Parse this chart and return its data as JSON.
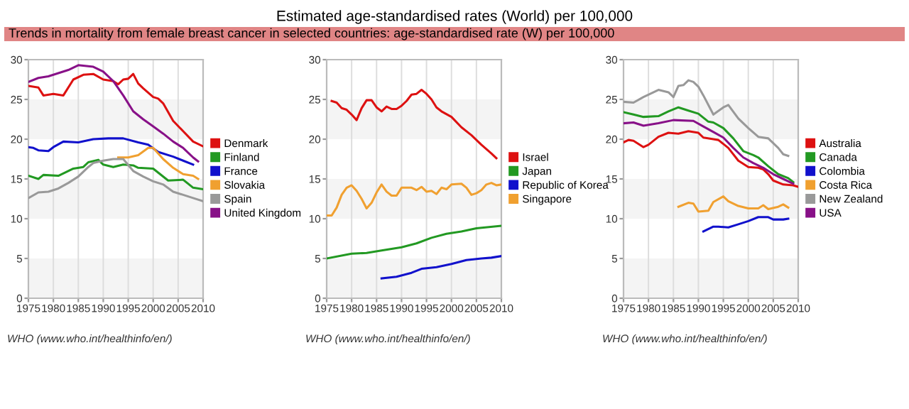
{
  "chart_data": [
    {
      "type": "line",
      "xlim": [
        1975,
        2010
      ],
      "xticks": [
        1975,
        1980,
        1985,
        1990,
        1995,
        2000,
        2005,
        2010
      ],
      "ylim": [
        0,
        30
      ],
      "yticks": [
        0,
        5,
        10,
        15,
        20,
        25,
        30
      ],
      "grid": "x",
      "legend": "right",
      "marker": "none",
      "line_style": "solid",
      "bands": [
        {
          "axis": "y",
          "from": 0,
          "to": 5,
          "color": "#f4f4f4"
        },
        {
          "axis": "y",
          "from": 10,
          "to": 15,
          "color": "#f4f4f4"
        },
        {
          "axis": "y",
          "from": 20,
          "to": 25,
          "color": "#f4f4f4"
        }
      ],
      "annotations": [
        "WHO (www.who.int/healthinfo/en/)"
      ],
      "series": [
        {
          "name": "Denmark",
          "color": "#dd1111",
          "x": [
            1975,
            1977,
            1978,
            1980,
            1982,
            1984,
            1986,
            1988,
            1990,
            1992,
            1993,
            1994,
            1995,
            1996,
            1997,
            1998,
            2000,
            2001,
            2002,
            2004,
            2006,
            2008,
            2010
          ],
          "values": [
            26.7,
            26.5,
            25.5,
            25.7,
            25.5,
            27.5,
            28.1,
            28.2,
            27.5,
            27.3,
            26.9,
            27.5,
            27.6,
            28.2,
            27.0,
            26.4,
            25.3,
            25.1,
            24.5,
            22.3,
            21.0,
            19.7,
            19.1
          ]
        },
        {
          "name": "Finland",
          "color": "#229922",
          "x": [
            1975,
            1977,
            1978,
            1981,
            1984,
            1986,
            1987,
            1989,
            1990,
            1992,
            1994,
            1996,
            1997,
            2000,
            2003,
            2006,
            2008,
            2010
          ],
          "values": [
            15.4,
            15.0,
            15.5,
            15.4,
            16.3,
            16.5,
            17.1,
            17.4,
            16.8,
            16.5,
            16.8,
            16.7,
            16.4,
            16.3,
            14.8,
            14.9,
            13.9,
            13.7
          ]
        },
        {
          "name": "France",
          "color": "#1111cc",
          "x": [
            1975,
            1976,
            1977,
            1979,
            1980,
            1982,
            1985,
            1988,
            1991,
            1994,
            1997,
            1999,
            2001,
            2004,
            2006,
            2008
          ],
          "values": [
            19.0,
            18.9,
            18.6,
            18.5,
            19.0,
            19.7,
            19.6,
            20.0,
            20.1,
            20.1,
            19.6,
            19.3,
            18.4,
            17.8,
            17.3,
            16.8
          ]
        },
        {
          "name": "Slovakia",
          "color": "#f0a030",
          "x": [
            1993,
            1995,
            1997,
            1999,
            2000,
            2002,
            2004,
            2006,
            2008,
            2009
          ],
          "values": [
            17.7,
            17.7,
            18.0,
            18.9,
            18.9,
            17.5,
            16.4,
            15.6,
            15.4,
            15.0
          ]
        },
        {
          "name": "Spain",
          "color": "#999999",
          "x": [
            1975,
            1977,
            1979,
            1981,
            1983,
            1985,
            1987,
            1988,
            1990,
            1992,
            1994,
            1996,
            1998,
            2000,
            2002,
            2004,
            2006,
            2008,
            2010
          ],
          "values": [
            12.6,
            13.3,
            13.4,
            13.8,
            14.5,
            15.3,
            16.5,
            17.0,
            17.3,
            17.5,
            17.5,
            16.0,
            15.3,
            14.7,
            14.3,
            13.4,
            13.0,
            12.6,
            12.2
          ]
        },
        {
          "name": "United Kingdom",
          "color": "#881188",
          "x": [
            1975,
            1977,
            1979,
            1981,
            1983,
            1985,
            1988,
            1990,
            1992,
            1994,
            1996,
            1998,
            2000,
            2002,
            2004,
            2006,
            2008,
            2009
          ],
          "values": [
            27.2,
            27.7,
            27.9,
            28.3,
            28.7,
            29.3,
            29.1,
            28.5,
            27.3,
            25.5,
            23.5,
            22.5,
            21.6,
            20.7,
            19.7,
            18.9,
            17.7,
            17.2
          ]
        }
      ]
    },
    {
      "type": "line",
      "title": "Estimated age-standardised rates (World) per 100,000",
      "subtitle": "Trends in mortality from female breast cancer in selected countries: age-standardised rate (W) per 100,000",
      "xlim": [
        1975,
        2010
      ],
      "xticks": [
        1975,
        1980,
        1985,
        1990,
        1995,
        2000,
        2005,
        2010
      ],
      "ylim": [
        0,
        30
      ],
      "yticks": [
        0,
        5,
        10,
        15,
        20,
        25,
        30
      ],
      "grid": "x",
      "legend": "right",
      "marker": "none",
      "line_style": "solid",
      "bands": [
        {
          "axis": "y",
          "from": 0,
          "to": 5,
          "color": "#f4f4f4"
        },
        {
          "axis": "y",
          "from": 10,
          "to": 15,
          "color": "#f4f4f4"
        },
        {
          "axis": "y",
          "from": 20,
          "to": 25,
          "color": "#f4f4f4"
        }
      ],
      "annotations": [
        "WHO (www.who.int/healthinfo/en/)"
      ],
      "series": [
        {
          "name": "Israel",
          "color": "#dd1111",
          "x": [
            1976,
            1977,
            1978,
            1979,
            1980,
            1981,
            1982,
            1983,
            1984,
            1985,
            1986,
            1987,
            1988,
            1989,
            1990,
            1991,
            1992,
            1993,
            1994,
            1995,
            1996,
            1997,
            1998,
            2000,
            2002,
            2004,
            2006,
            2008,
            2009
          ],
          "values": [
            24.8,
            24.6,
            23.9,
            23.7,
            23.1,
            22.4,
            23.9,
            24.9,
            24.9,
            24.0,
            23.5,
            24.1,
            23.8,
            23.8,
            24.2,
            24.8,
            25.6,
            25.7,
            26.2,
            25.7,
            25.0,
            24.0,
            23.5,
            22.8,
            21.5,
            20.5,
            19.3,
            18.2,
            17.6
          ]
        },
        {
          "name": "Japan",
          "color": "#229922",
          "x": [
            1975,
            1980,
            1983,
            1986,
            1990,
            1993,
            1996,
            1999,
            2002,
            2005,
            2010
          ],
          "values": [
            5.0,
            5.6,
            5.7,
            6.0,
            6.4,
            6.9,
            7.6,
            8.1,
            8.4,
            8.8,
            9.1
          ]
        },
        {
          "name": "Republic of Korea",
          "color": "#1111cc",
          "x": [
            1986,
            1989,
            1992,
            1994,
            1997,
            2000,
            2003,
            2006,
            2008,
            2010
          ],
          "values": [
            2.5,
            2.7,
            3.2,
            3.7,
            3.9,
            4.3,
            4.8,
            5.0,
            5.1,
            5.3
          ]
        },
        {
          "name": "Singapore",
          "color": "#f0a030",
          "x": [
            1975,
            1976,
            1977,
            1978,
            1979,
            1980,
            1981,
            1982,
            1983,
            1984,
            1985,
            1986,
            1987,
            1988,
            1989,
            1990,
            1992,
            1993,
            1994,
            1995,
            1996,
            1997,
            1998,
            1999,
            2000,
            2002,
            2003,
            2004,
            2005,
            2006,
            2007,
            2008,
            2009,
            2010
          ],
          "values": [
            10.4,
            10.4,
            11.4,
            13.0,
            13.9,
            14.2,
            13.5,
            12.5,
            11.3,
            12.0,
            13.3,
            14.3,
            13.4,
            12.9,
            12.9,
            13.9,
            13.9,
            13.6,
            14.0,
            13.4,
            13.5,
            13.1,
            13.9,
            13.7,
            14.3,
            14.4,
            13.9,
            13.0,
            13.2,
            13.6,
            14.3,
            14.5,
            14.2,
            14.3
          ]
        }
      ]
    },
    {
      "type": "line",
      "xlim": [
        1975,
        2010
      ],
      "xticks": [
        1975,
        1980,
        1985,
        1990,
        1995,
        2000,
        2005,
        2010
      ],
      "ylim": [
        0,
        30
      ],
      "yticks": [
        0,
        5,
        10,
        15,
        20,
        25,
        30
      ],
      "grid": "x",
      "legend": "right",
      "marker": "none",
      "line_style": "solid",
      "bands": [
        {
          "axis": "y",
          "from": 0,
          "to": 5,
          "color": "#f4f4f4"
        },
        {
          "axis": "y",
          "from": 10,
          "to": 15,
          "color": "#f4f4f4"
        },
        {
          "axis": "y",
          "from": 20,
          "to": 25,
          "color": "#f4f4f4"
        }
      ],
      "annotations": [
        "WHO (www.who.int/healthinfo/en/)"
      ],
      "series": [
        {
          "name": "Australia",
          "color": "#dd1111",
          "x": [
            1975,
            1976,
            1977,
            1979,
            1980,
            1982,
            1984,
            1986,
            1988,
            1990,
            1991,
            1993,
            1994,
            1996,
            1998,
            2000,
            2002,
            2003,
            2004,
            2005,
            2007,
            2009,
            2010
          ],
          "values": [
            19.6,
            19.9,
            19.8,
            19.0,
            19.3,
            20.3,
            20.8,
            20.7,
            21.0,
            20.8,
            20.2,
            20.0,
            19.9,
            18.9,
            17.3,
            16.5,
            16.4,
            16.2,
            15.6,
            14.8,
            14.3,
            14.2,
            14.0
          ]
        },
        {
          "name": "Canada",
          "color": "#229922",
          "x": [
            1975,
            1977,
            1979,
            1982,
            1984,
            1986,
            1988,
            1990,
            1992,
            1993,
            1995,
            1997,
            1999,
            2001,
            2002,
            2004,
            2006,
            2008,
            2009
          ],
          "values": [
            23.4,
            23.1,
            22.8,
            22.9,
            23.5,
            24.0,
            23.6,
            23.2,
            22.2,
            22.1,
            21.4,
            20.1,
            18.5,
            18.0,
            17.7,
            16.6,
            15.6,
            15.1,
            14.6
          ]
        },
        {
          "name": "Colombia",
          "color": "#1111cc",
          "x": [
            1991,
            1993,
            1994,
            1996,
            1998,
            2000,
            2002,
            2004,
            2005,
            2007,
            2008
          ],
          "values": [
            8.4,
            9.0,
            9.0,
            8.9,
            9.3,
            9.7,
            10.2,
            10.2,
            9.9,
            9.9,
            10.0
          ]
        },
        {
          "name": "Costa Rica",
          "color": "#f0a030",
          "x": [
            1986,
            1988,
            1989,
            1990,
            1992,
            1993,
            1995,
            1996,
            1998,
            2000,
            2002,
            2003,
            2004,
            2006,
            2007,
            2008
          ],
          "values": [
            11.5,
            12.0,
            11.9,
            10.9,
            11.0,
            12.1,
            12.8,
            12.2,
            11.6,
            11.3,
            11.3,
            11.7,
            11.2,
            11.5,
            11.8,
            11.4
          ]
        },
        {
          "name": "New Zealand",
          "color": "#999999",
          "x": [
            1975,
            1977,
            1979,
            1982,
            1984,
            1985,
            1986,
            1987,
            1988,
            1989,
            1990,
            1991,
            1993,
            1995,
            1996,
            1998,
            2000,
            2002,
            2004,
            2006,
            2007,
            2008
          ],
          "values": [
            24.7,
            24.6,
            25.3,
            26.2,
            25.9,
            25.3,
            26.7,
            26.8,
            27.4,
            27.2,
            26.6,
            25.5,
            23.1,
            24.0,
            24.3,
            22.6,
            21.4,
            20.3,
            20.1,
            18.9,
            18.1,
            17.9
          ]
        },
        {
          "name": "USA",
          "color": "#881188",
          "x": [
            1975,
            1977,
            1979,
            1982,
            1985,
            1989,
            1991,
            1993,
            1995,
            1997,
            1999,
            2001,
            2003,
            2005,
            2007,
            2009
          ],
          "values": [
            22.0,
            22.1,
            21.7,
            22.0,
            22.4,
            22.3,
            21.6,
            20.9,
            20.2,
            18.9,
            17.7,
            17.0,
            16.4,
            15.6,
            15.0,
            14.4
          ]
        }
      ]
    }
  ]
}
